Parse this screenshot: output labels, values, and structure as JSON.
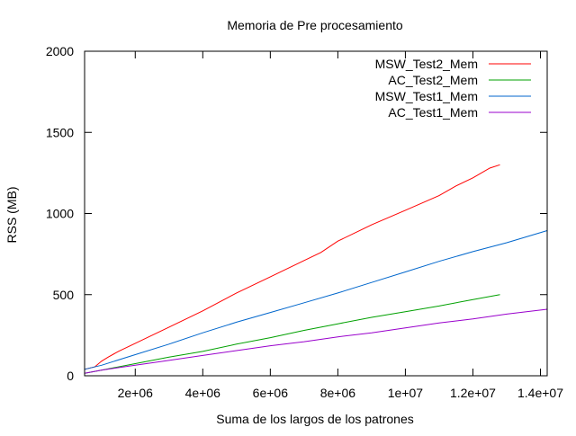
{
  "chart_data": {
    "type": "line",
    "title": "Memoria de Pre procesamiento",
    "xlabel": "Suma de los largos de los patrones",
    "ylabel": "RSS (MB)",
    "xlim": [
      500000,
      14200000
    ],
    "ylim": [
      0,
      2000
    ],
    "x_ticks": [
      2000000,
      4000000,
      6000000,
      8000000,
      10000000,
      12000000,
      14000000
    ],
    "x_tick_labels": [
      "2e+06",
      "4e+06",
      "6e+06",
      "8e+06",
      "1e+07",
      "1.2e+07",
      "1.4e+07"
    ],
    "y_ticks": [
      0,
      500,
      1000,
      1500,
      2000
    ],
    "y_tick_labels": [
      "0",
      "500",
      "1000",
      "1500",
      "2000"
    ],
    "grid": false,
    "legend_position": "top-right",
    "series": [
      {
        "name": "MSW_Test2_Mem",
        "color": "#ff0000",
        "x": [
          500000,
          800000,
          1000000,
          1200000,
          1500000,
          2000000,
          3000000,
          4000000,
          5000000,
          6000000,
          7000000,
          7500000,
          8000000,
          9000000,
          10000000,
          11000000,
          11500000,
          12000000,
          12500000,
          12800000
        ],
        "y": [
          40,
          55,
          90,
          115,
          150,
          200,
          300,
          400,
          510,
          610,
          710,
          760,
          830,
          930,
          1020,
          1110,
          1170,
          1220,
          1280,
          1300
        ]
      },
      {
        "name": "AC_Test2_Mem",
        "color": "#00a000",
        "x": [
          500000,
          1000000,
          2000000,
          3000000,
          4000000,
          5000000,
          6000000,
          7000000,
          8000000,
          9000000,
          10000000,
          11000000,
          12000000,
          12800000
        ],
        "y": [
          15,
          35,
          75,
          115,
          150,
          195,
          235,
          280,
          320,
          360,
          395,
          430,
          470,
          500
        ]
      },
      {
        "name": "MSW_Test1_Mem",
        "color": "#0066cc",
        "x": [
          500000,
          1000000,
          2000000,
          3000000,
          4000000,
          5000000,
          6000000,
          7000000,
          8000000,
          9000000,
          10000000,
          11000000,
          12000000,
          13000000,
          14200000
        ],
        "y": [
          40,
          65,
          130,
          195,
          265,
          330,
          390,
          450,
          510,
          575,
          640,
          705,
          765,
          820,
          895
        ]
      },
      {
        "name": "AC_Test1_Mem",
        "color": "#9900cc",
        "x": [
          500000,
          1000000,
          2000000,
          3000000,
          4000000,
          5000000,
          6000000,
          7000000,
          8000000,
          9000000,
          10000000,
          11000000,
          12000000,
          13000000,
          14200000
        ],
        "y": [
          15,
          35,
          65,
          95,
          125,
          155,
          185,
          210,
          240,
          265,
          295,
          325,
          350,
          380,
          410
        ]
      }
    ]
  }
}
